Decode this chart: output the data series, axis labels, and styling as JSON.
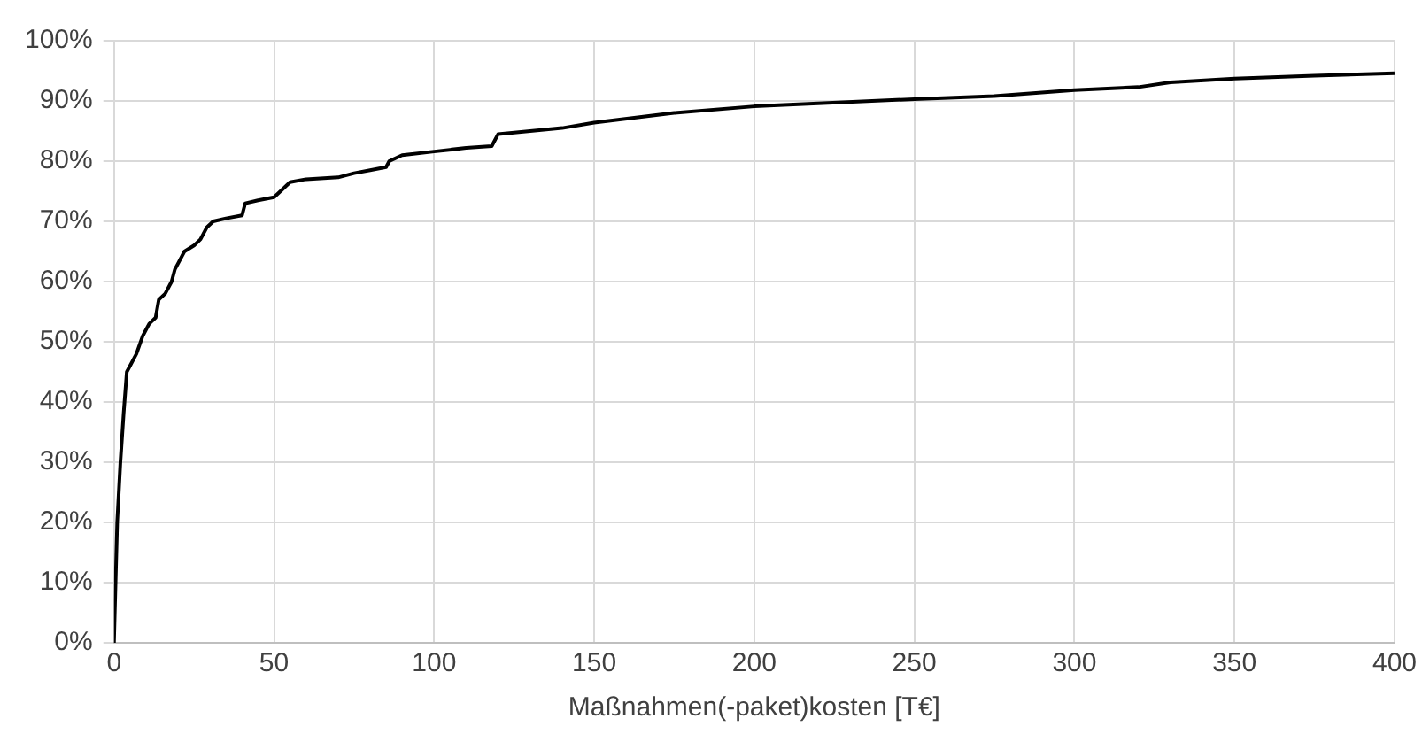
{
  "chart_data": {
    "type": "line",
    "xlabel": "Maßnahmen(-paket)kosten [T€]",
    "series": [
      {
        "color": "#000000",
        "x": [
          0,
          1,
          2,
          3,
          4,
          5,
          7,
          9,
          11,
          13,
          14,
          16,
          18,
          19,
          20,
          22,
          25,
          27,
          29,
          31,
          35,
          40,
          41,
          45,
          50,
          52,
          55,
          60,
          70,
          75,
          80,
          85,
          86,
          90,
          100,
          110,
          118,
          120,
          130,
          140,
          150,
          175,
          200,
          250,
          275,
          300,
          320,
          330,
          350,
          375,
          400
        ],
        "values": [
          0,
          20,
          30,
          38,
          45,
          46,
          48,
          51,
          53,
          54,
          57,
          58,
          60,
          62,
          63,
          65,
          66,
          67,
          69,
          70,
          70.5,
          71,
          73,
          73.5,
          74,
          75,
          76.5,
          77,
          77.3,
          78,
          78.5,
          79,
          80,
          81,
          81.6,
          82.2,
          82.5,
          84.5,
          85,
          85.5,
          86.4,
          88,
          89.1,
          90.3,
          90.8,
          91.8,
          92.3,
          93.1,
          93.7,
          94.2,
          94.6
        ]
      }
    ],
    "xlim": [
      0,
      400
    ],
    "xticks": [
      0,
      50,
      100,
      150,
      200,
      250,
      300,
      350,
      400
    ],
    "ylim": [
      0,
      100
    ],
    "yticks": [
      {
        "value": 0,
        "label": "0%"
      },
      {
        "value": 10,
        "label": "10%"
      },
      {
        "value": 20,
        "label": "20%"
      },
      {
        "value": 30,
        "label": "30%"
      },
      {
        "value": 40,
        "label": "40%"
      },
      {
        "value": 50,
        "label": "50%"
      },
      {
        "value": 60,
        "label": "60%"
      },
      {
        "value": 70,
        "label": "70%"
      },
      {
        "value": 80,
        "label": "80%"
      },
      {
        "value": 90,
        "label": "90%"
      },
      {
        "value": 100,
        "label": "100%"
      }
    ],
    "grid": true,
    "legend": false,
    "marker": "none",
    "line_style": "solid"
  }
}
